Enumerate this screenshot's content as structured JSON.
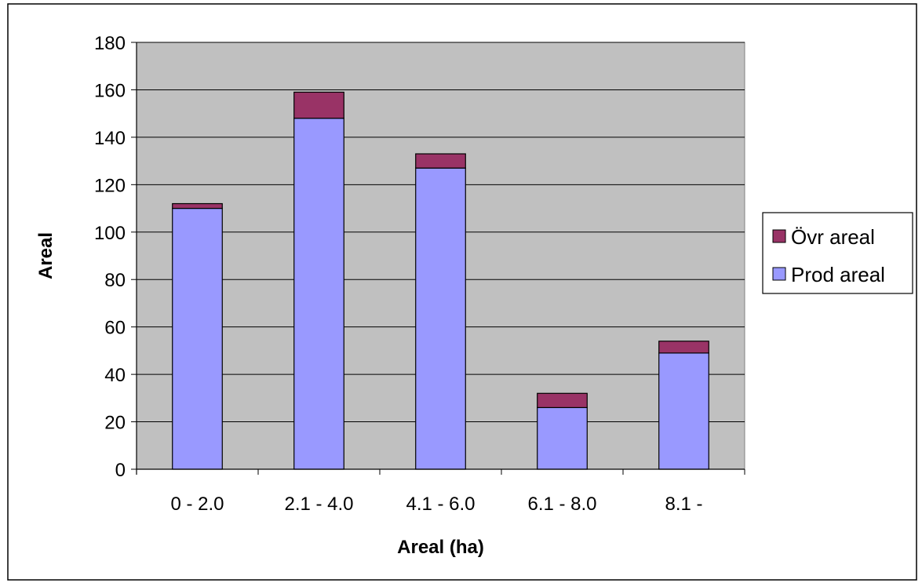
{
  "chart_data": {
    "type": "bar",
    "stacked": true,
    "title": "",
    "xlabel": "Areal (ha)",
    "ylabel": "Areal",
    "categories": [
      "0 - 2.0",
      "2.1 - 4.0",
      "4.1 - 6.0",
      "6.1 - 8.0",
      "8.1 -"
    ],
    "series": [
      {
        "name": "Prod areal",
        "values": [
          110,
          148,
          127,
          26,
          49
        ],
        "color": "#9999ff"
      },
      {
        "name": "Övr areal",
        "values": [
          2,
          11,
          6,
          6,
          5
        ],
        "color": "#993366"
      }
    ],
    "ylim": [
      0,
      180
    ],
    "yticks": [
      0,
      20,
      40,
      60,
      80,
      100,
      120,
      140,
      160,
      180
    ],
    "grid": true,
    "plot_background": "#c0c0c0",
    "legend_position": "right",
    "legend_order": [
      "Övr areal",
      "Prod areal"
    ]
  }
}
